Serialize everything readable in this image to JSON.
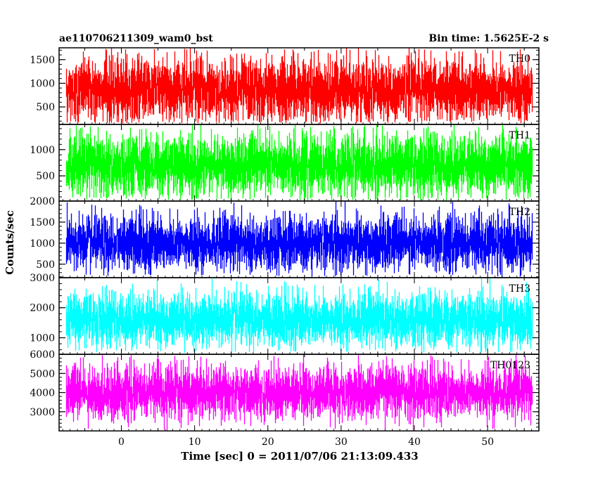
{
  "chart_data": {
    "type": "line",
    "title": "ae110706211309_wam0_bst",
    "bin_time_label": "Bin time: 1.5625E-2 s",
    "xlabel": "Time [sec] 0 = 2011/07/06 21:13:09.433",
    "ylabel": "Counts/sec",
    "xlim": [
      -8.5,
      57
    ],
    "x_ticks": [
      0,
      10,
      20,
      30,
      40,
      50
    ],
    "x_tick_labels": [
      "0",
      "10",
      "20",
      "30",
      "40",
      "50"
    ],
    "data_range": [
      -7.5,
      56
    ],
    "bin_time": 0.015625,
    "panels": [
      {
        "name": "TH0",
        "color": "#ff0000",
        "ylim": [
          130,
          1750
        ],
        "yticks": [
          500,
          1000,
          1500
        ],
        "ytick_labels": [
          "500",
          "1000",
          "1500"
        ],
        "mean": 850,
        "sd": 330,
        "min": 150,
        "max": 1750
      },
      {
        "name": "TH1",
        "color": "#00ff00",
        "ylim": [
          20,
          1480
        ],
        "yticks": [
          500,
          1000
        ],
        "ytick_labels": [
          "500",
          "1000"
        ],
        "mean": 700,
        "sd": 290,
        "min": 30,
        "max": 1480
      },
      {
        "name": "TH2",
        "color": "#0000ff",
        "ylim": [
          180,
          2000
        ],
        "yticks": [
          500,
          1000,
          1500,
          2000
        ],
        "ytick_labels": [
          "500",
          "1000",
          "1500",
          "2000"
        ],
        "mean": 1000,
        "sd": 320,
        "min": 200,
        "max": 2000
      },
      {
        "name": "TH3",
        "color": "#00ffff",
        "ylim": [
          450,
          3000
        ],
        "yticks": [
          1000,
          2000,
          3000
        ],
        "ytick_labels": [
          "1000",
          "2000",
          "3000"
        ],
        "mean": 1600,
        "sd": 450,
        "min": 480,
        "max": 3000
      },
      {
        "name": "TH0123",
        "color": "#ff00ff",
        "ylim": [
          2000,
          6000
        ],
        "yticks": [
          3000,
          4000,
          5000,
          6000
        ],
        "ytick_labels": [
          "3000",
          "4000",
          "5000",
          "6000"
        ],
        "mean": 4000,
        "sd": 680,
        "min": 2000,
        "max": 6000
      }
    ],
    "grid": false,
    "legend": "panel labels top-right"
  }
}
